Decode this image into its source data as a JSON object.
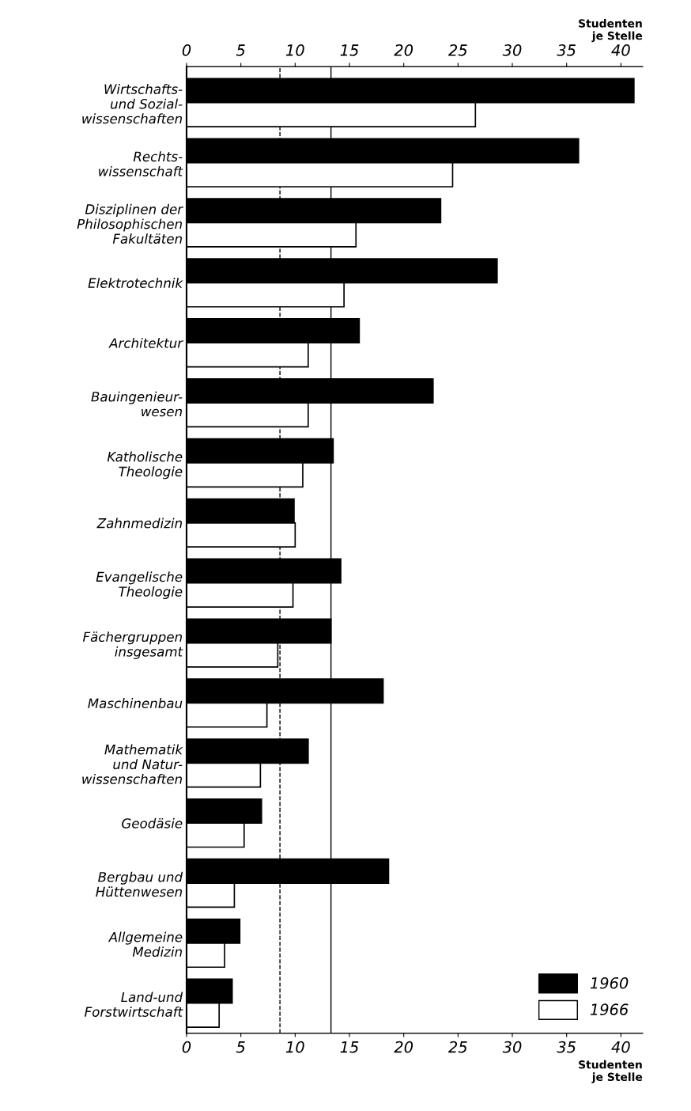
{
  "chart_data": {
    "type": "bar",
    "orientation": "horizontal",
    "categories": [
      "Wirtschafts-\nund Sozial-\nwissenschaften",
      "Rechts-\nwissenschaft",
      "Disziplinen der\nPhilosophischen\nFakultäten",
      "Elektrotechnik",
      "Architektur",
      "Bauingenieur-\nwesen",
      "Katholische\nTheologie",
      "Zahnmedizin",
      "Evangelische\nTheologie",
      "Fächergruppen\ninsgesamt",
      "Maschinenbau",
      "Mathematik\nund Natur-\nwissenschaften",
      "Geodäsie",
      "Bergbau und\nHüttenwesen",
      "Allgemeine\nMedizin",
      "Land-und\nForstwirtschaft"
    ],
    "series": [
      {
        "name": "1960",
        "color": "#000000",
        "values": [
          41.2,
          36.1,
          23.4,
          28.6,
          15.9,
          22.7,
          13.5,
          9.9,
          14.2,
          13.3,
          18.1,
          11.2,
          6.9,
          18.6,
          4.9,
          4.2
        ]
      },
      {
        "name": "1966",
        "color": "#ffffff",
        "values": [
          26.6,
          24.5,
          15.6,
          14.5,
          11.2,
          11.2,
          10.7,
          10.0,
          9.8,
          8.4,
          7.4,
          6.8,
          5.3,
          4.4,
          3.5,
          3.0
        ]
      }
    ],
    "xlim": [
      0,
      42
    ],
    "xticks": [
      0,
      5,
      10,
      15,
      20,
      25,
      30,
      35,
      40
    ],
    "x2lim": [
      0,
      42
    ],
    "x2ticks": [
      0,
      5,
      10,
      15,
      20,
      25,
      30,
      35,
      40
    ],
    "xlabel": "Studenten\nje Stelle",
    "x2label": "Studenten\nje Stelle",
    "ref_lines": [
      {
        "axis": "x",
        "value": 13.3,
        "line_style": "solid"
      },
      {
        "axis": "x",
        "value": 8.6,
        "line_style": "dashed"
      }
    ],
    "legend": "bottom right",
    "grid": false
  }
}
